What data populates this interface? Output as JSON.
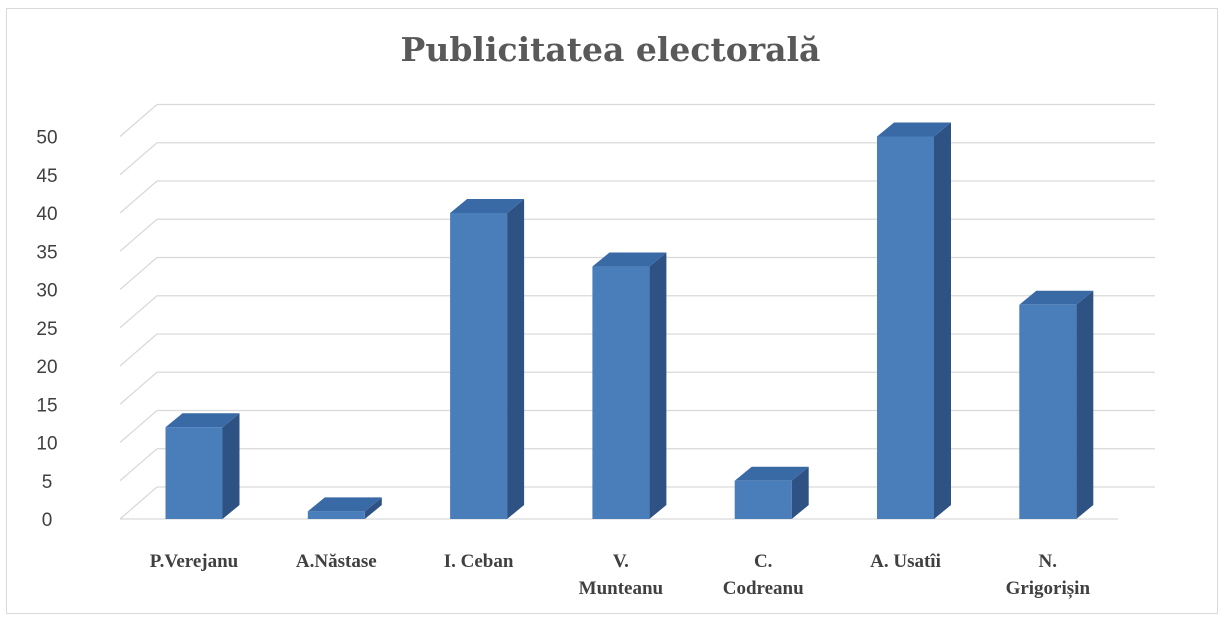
{
  "chart_data": {
    "type": "bar",
    "title": "Publicitatea electorală",
    "categories": [
      "P.Verejanu",
      "A.Năstase",
      "I. Ceban",
      "V. Munteanu",
      "C. Codreanu",
      "A. Usatîi",
      "N. Grigorișin"
    ],
    "category_lines": [
      [
        "P.Verejanu"
      ],
      [
        "A.Năstase"
      ],
      [
        "I. Ceban"
      ],
      [
        "V.",
        "Munteanu"
      ],
      [
        "C.",
        "Codreanu"
      ],
      [
        "A. Usatîi"
      ],
      [
        "N.",
        "Grigorișin"
      ]
    ],
    "values": [
      12,
      1,
      40,
      33,
      5,
      50,
      28
    ],
    "ylim": [
      0,
      50
    ],
    "yticks": [
      "0",
      "5",
      "10",
      "15",
      "20",
      "25",
      "30",
      "35",
      "40",
      "45",
      "50"
    ],
    "grid": true,
    "legend": "none",
    "style": "3d-column",
    "colors": {
      "bar_front": "#4a7ebb",
      "bar_side": "#2f5284",
      "bar_top": "#3a6aa6",
      "grid": "#d9d9d9"
    }
  }
}
